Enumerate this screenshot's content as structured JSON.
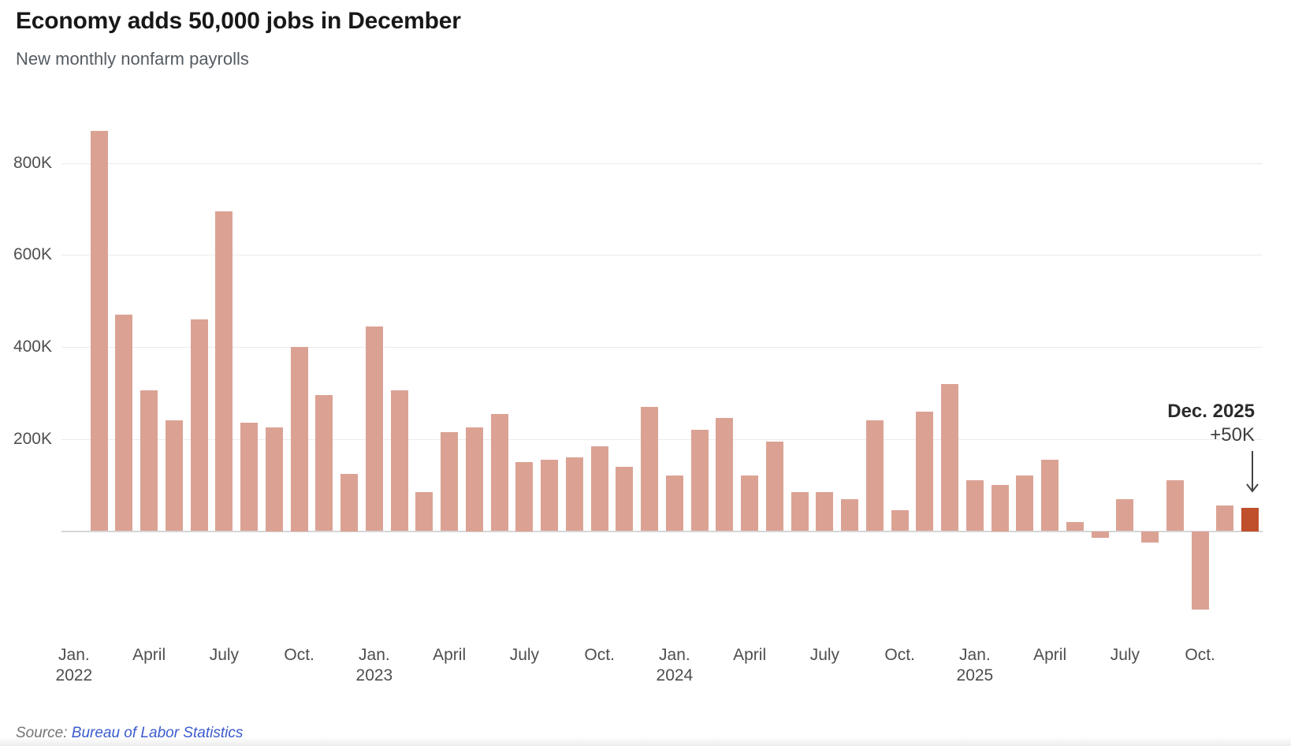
{
  "header": {
    "title": "Economy adds 50,000 jobs in December",
    "subtitle": "New monthly nonfarm payrolls"
  },
  "annotation": {
    "line1": "Dec. 2025",
    "line2": "+50K"
  },
  "source": {
    "prefix": "Source: ",
    "link_text": "Bureau of Labor Statistics"
  },
  "colors": {
    "bar": "#dba294",
    "bar_highlight": "#c04f2c",
    "grid": "#ebebeb",
    "axis_line": "#d6d6d6",
    "title": "#181818",
    "subtitle": "#555c63",
    "tick": "#4f4f4f",
    "annotation_bold": "#2b2b2b",
    "annotation_value": "#3f3f3f",
    "source_text": "#757575",
    "source_link": "#3b5bce"
  },
  "chart_data": {
    "type": "bar",
    "title": "Economy adds 50,000 jobs in December",
    "subtitle": "New monthly nonfarm payrolls",
    "unit": "jobs, thousands",
    "xlabel": "",
    "ylabel": "",
    "ylim": [
      -200,
      880
    ],
    "grid": "horizontal",
    "y_ticks": [
      {
        "value": 200,
        "label": "200K"
      },
      {
        "value": 400,
        "label": "400K"
      },
      {
        "value": 600,
        "label": "600K"
      },
      {
        "value": 800,
        "label": "800K"
      }
    ],
    "categories": [
      "Feb 2022",
      "Mar 2022",
      "Apr 2022",
      "May 2022",
      "Jun 2022",
      "Jul 2022",
      "Aug 2022",
      "Sep 2022",
      "Oct 2022",
      "Nov 2022",
      "Dec 2022",
      "Jan 2023",
      "Feb 2023",
      "Mar 2023",
      "Apr 2023",
      "May 2023",
      "Jun 2023",
      "Jul 2023",
      "Aug 2023",
      "Sep 2023",
      "Oct 2023",
      "Nov 2023",
      "Dec 2023",
      "Jan 2024",
      "Feb 2024",
      "Mar 2024",
      "Apr 2024",
      "May 2024",
      "Jun 2024",
      "Jul 2024",
      "Aug 2024",
      "Sep 2024",
      "Oct 2024",
      "Nov 2024",
      "Dec 2024",
      "Jan 2025",
      "Feb 2025",
      "Mar 2025",
      "Apr 2025",
      "May 2025",
      "Jun 2025",
      "Jul 2025",
      "Aug 2025",
      "Sep 2025",
      "Oct 2025",
      "Nov 2025",
      "Dec 2025"
    ],
    "values": [
      870,
      470,
      305,
      240,
      460,
      695,
      235,
      225,
      400,
      295,
      125,
      445,
      305,
      85,
      215,
      225,
      255,
      150,
      155,
      160,
      185,
      140,
      270,
      120,
      220,
      245,
      120,
      195,
      85,
      85,
      70,
      240,
      45,
      260,
      320,
      110,
      100,
      120,
      155,
      20,
      -15,
      70,
      -25,
      110,
      -170,
      55,
      50
    ],
    "highlight_index": 46,
    "highlight_label": "Dec. 2025",
    "highlight_value_label": "+50K",
    "first_bar_month_offset": 1,
    "x_ticks": [
      {
        "label": "Jan.",
        "sub": "2022",
        "month_index": 0
      },
      {
        "label": "April",
        "sub": "",
        "month_index": 3
      },
      {
        "label": "July",
        "sub": "",
        "month_index": 6
      },
      {
        "label": "Oct.",
        "sub": "",
        "month_index": 9
      },
      {
        "label": "Jan.",
        "sub": "2023",
        "month_index": 12
      },
      {
        "label": "April",
        "sub": "",
        "month_index": 15
      },
      {
        "label": "July",
        "sub": "",
        "month_index": 18
      },
      {
        "label": "Oct.",
        "sub": "",
        "month_index": 21
      },
      {
        "label": "Jan.",
        "sub": "2024",
        "month_index": 24
      },
      {
        "label": "April",
        "sub": "",
        "month_index": 27
      },
      {
        "label": "July",
        "sub": "",
        "month_index": 30
      },
      {
        "label": "Oct.",
        "sub": "",
        "month_index": 33
      },
      {
        "label": "Jan.",
        "sub": "2025",
        "month_index": 36
      },
      {
        "label": "April",
        "sub": "",
        "month_index": 39
      },
      {
        "label": "July",
        "sub": "",
        "month_index": 42
      },
      {
        "label": "Oct.",
        "sub": "",
        "month_index": 45
      }
    ]
  }
}
